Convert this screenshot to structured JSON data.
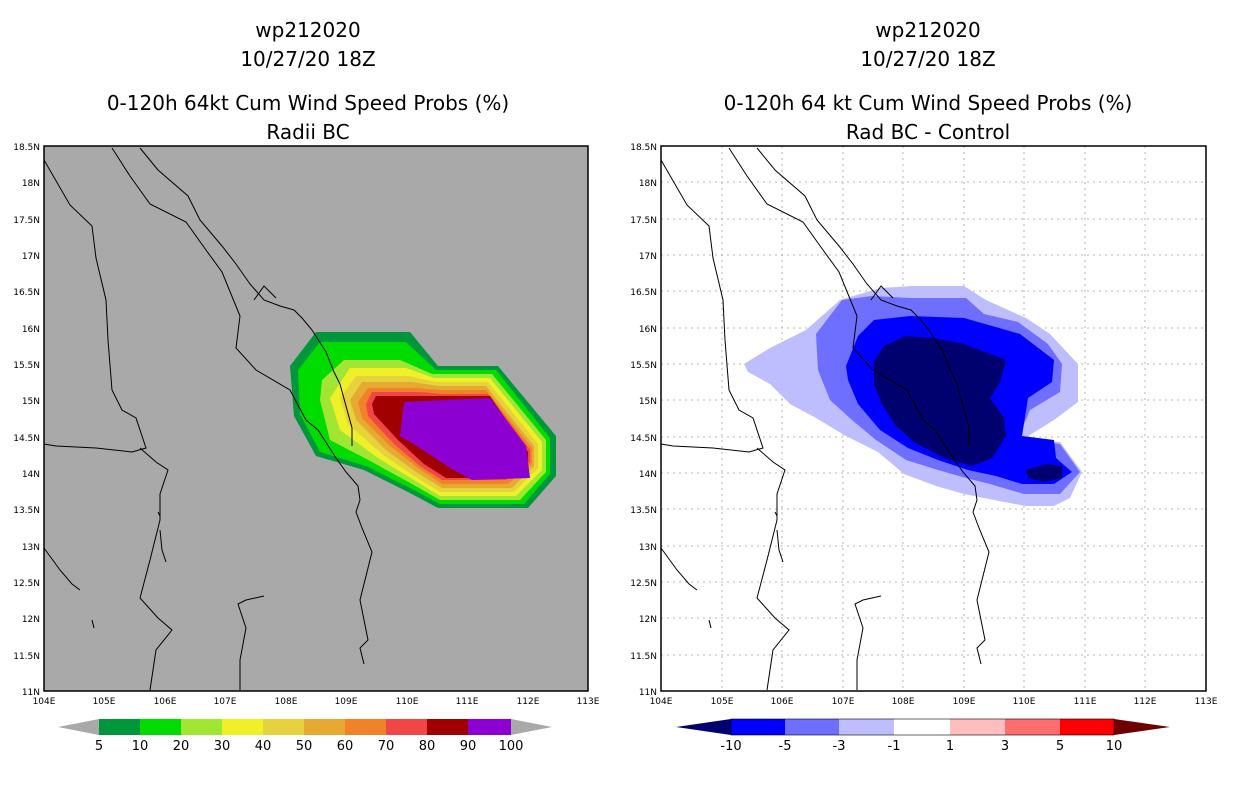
{
  "left_panel": {
    "title_line1": "wp212020",
    "title_line2": "10/27/20 18Z",
    "subtitle_line1": "0-120h 64kt Cum Wind Speed Probs (%)",
    "subtitle_line2": "Radii BC",
    "lat_labels": [
      "18.5N",
      "18N",
      "17.5N",
      "17N",
      "16.5N",
      "16N",
      "15.5N",
      "15N",
      "14.5N",
      "14N",
      "13.5N",
      "13N",
      "12.5N",
      "12N",
      "11.5N",
      "11N"
    ],
    "lon_labels": [
      "104E",
      "105E",
      "106E",
      "107E",
      "108E",
      "109E",
      "110E",
      "111E",
      "112E",
      "113E"
    ],
    "colorbar_labels": [
      "5",
      "10",
      "20",
      "30",
      "40",
      "50",
      "60",
      "70",
      "80",
      "90",
      "100"
    ],
    "colorbar_colors": [
      "#00963c",
      "#00dc00",
      "#a0e632",
      "#f0f028",
      "#e6d23c",
      "#e6aa32",
      "#f08228",
      "#f04646",
      "#a00000",
      "#8c00d2"
    ],
    "background_color": "#a9a9a9"
  },
  "right_panel": {
    "title_line1": "wp212020",
    "title_line2": "10/27/20 18Z",
    "subtitle_line1": "0-120h 64 kt Cum Wind Speed Probs (%)",
    "subtitle_line2": "Rad BC - Control",
    "lat_labels": [
      "18.5N",
      "18N",
      "17.5N",
      "17N",
      "16.5N",
      "16N",
      "15.5N",
      "15N",
      "14.5N",
      "14N",
      "13.5N",
      "13N",
      "12.5N",
      "12N",
      "11.5N",
      "11N"
    ],
    "lon_labels": [
      "104E",
      "105E",
      "106E",
      "107E",
      "108E",
      "109E",
      "110E",
      "111E",
      "112E",
      "113E"
    ],
    "colorbar_labels": [
      "-10",
      "-5",
      "-3",
      "-1",
      "1",
      "3",
      "5",
      "10"
    ],
    "colorbar_colors": [
      "#00006e",
      "#0000ff",
      "#6e6eff",
      "#bebeff",
      "#ffffff",
      "#ffbebe",
      "#ff6e6e",
      "#ff0000",
      "#6e0000"
    ],
    "background_color": "#ffffff"
  }
}
